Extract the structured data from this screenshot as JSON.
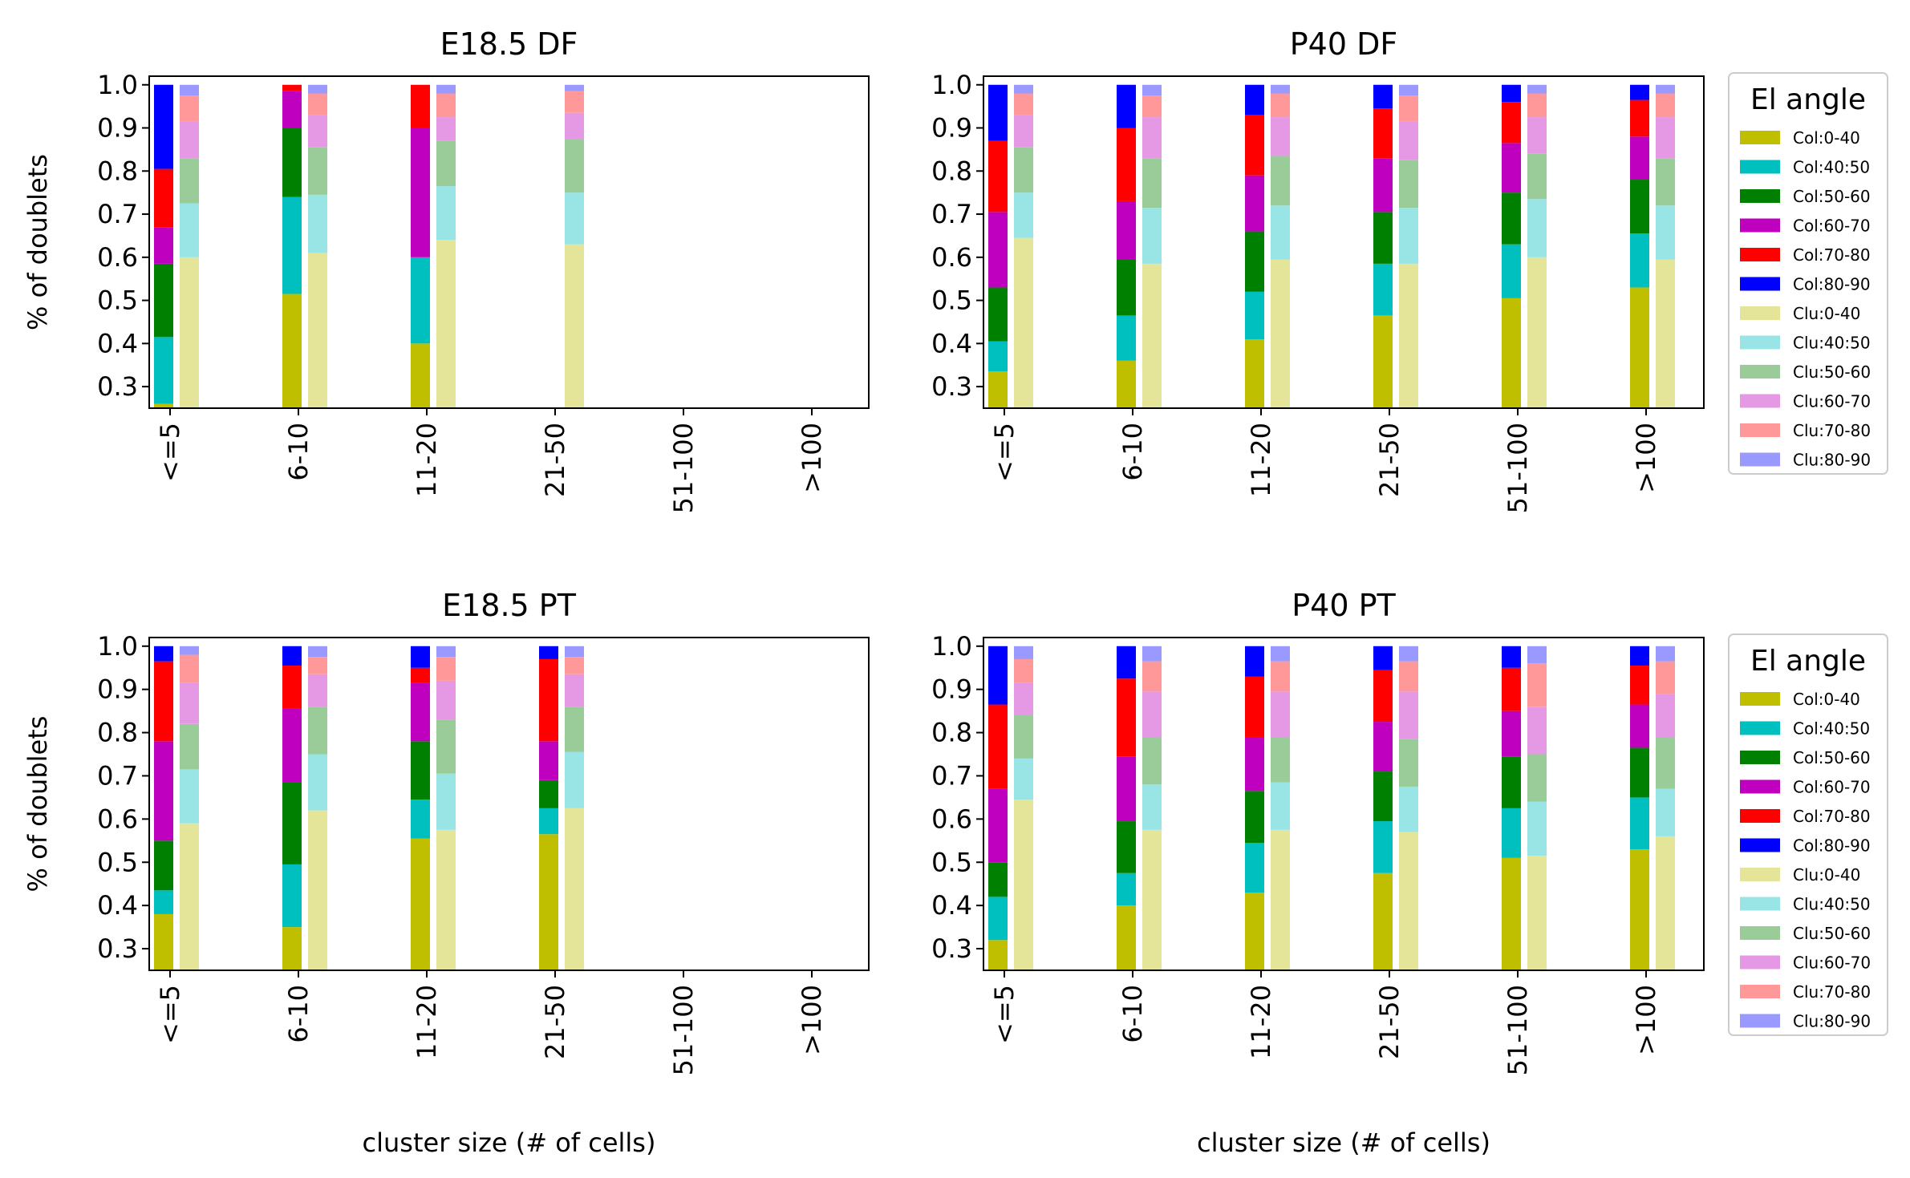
{
  "chart_data": [
    {
      "type": "bar",
      "title": "E18.5 DF",
      "xlabel": "",
      "ylabel": "% of doublets",
      "ylim": [
        0.25,
        1.02
      ],
      "yticks": [
        "0.3",
        "0.4",
        "0.5",
        "0.6",
        "0.7",
        "0.8",
        "0.9",
        "1.0"
      ],
      "categories": [
        "<=5",
        "6-10",
        "11-20",
        "21-50",
        "51-100",
        ">100"
      ],
      "col": [
        [
          0.26,
          0.415,
          0.585,
          0.67,
          0.805,
          1.0
        ],
        [
          0.515,
          0.74,
          0.9,
          0.985,
          1.0,
          1.0
        ],
        [
          0.4,
          0.6,
          0.6,
          0.9,
          1.0,
          1.0
        ],
        null,
        null,
        null
      ],
      "clu": [
        [
          0.6,
          0.725,
          0.83,
          0.915,
          0.975,
          1.0
        ],
        [
          0.61,
          0.745,
          0.855,
          0.93,
          0.98,
          1.0
        ],
        [
          0.64,
          0.765,
          0.87,
          0.925,
          0.98,
          1.0
        ],
        [
          0.63,
          0.75,
          0.875,
          0.935,
          0.985,
          1.0
        ],
        null,
        null
      ]
    },
    {
      "type": "bar",
      "title": "P40 DF",
      "xlabel": "",
      "ylabel": "",
      "ylim": [
        0.25,
        1.02
      ],
      "yticks": [
        "0.3",
        "0.4",
        "0.5",
        "0.6",
        "0.7",
        "0.8",
        "0.9",
        "1.0"
      ],
      "categories": [
        "<=5",
        "6-10",
        "11-20",
        "21-50",
        "51-100",
        ">100"
      ],
      "col": [
        [
          0.335,
          0.405,
          0.53,
          0.705,
          0.87,
          1.0
        ],
        [
          0.36,
          0.465,
          0.595,
          0.73,
          0.9,
          1.0
        ],
        [
          0.41,
          0.52,
          0.66,
          0.79,
          0.93,
          1.0
        ],
        [
          0.465,
          0.585,
          0.705,
          0.83,
          0.945,
          1.0
        ],
        [
          0.505,
          0.63,
          0.75,
          0.865,
          0.96,
          1.0
        ],
        [
          0.53,
          0.655,
          0.78,
          0.88,
          0.965,
          1.0
        ]
      ],
      "clu": [
        [
          0.645,
          0.75,
          0.855,
          0.93,
          0.98,
          1.0
        ],
        [
          0.585,
          0.715,
          0.83,
          0.925,
          0.975,
          1.0
        ],
        [
          0.595,
          0.72,
          0.835,
          0.925,
          0.98,
          1.0
        ],
        [
          0.585,
          0.715,
          0.825,
          0.915,
          0.975,
          1.0
        ],
        [
          0.6,
          0.735,
          0.84,
          0.925,
          0.98,
          1.0
        ],
        [
          0.595,
          0.72,
          0.83,
          0.925,
          0.98,
          1.0
        ]
      ]
    },
    {
      "type": "bar",
      "title": "E18.5 PT",
      "xlabel": "cluster size (# of cells)",
      "ylabel": "% of doublets",
      "ylim": [
        0.25,
        1.02
      ],
      "yticks": [
        "0.3",
        "0.4",
        "0.5",
        "0.6",
        "0.7",
        "0.8",
        "0.9",
        "1.0"
      ],
      "categories": [
        "<=5",
        "6-10",
        "11-20",
        "21-50",
        "51-100",
        ">100"
      ],
      "col": [
        [
          0.38,
          0.435,
          0.55,
          0.78,
          0.965,
          1.0
        ],
        [
          0.35,
          0.495,
          0.685,
          0.855,
          0.955,
          1.0
        ],
        [
          0.555,
          0.645,
          0.78,
          0.915,
          0.95,
          1.0
        ],
        [
          0.565,
          0.625,
          0.69,
          0.78,
          0.97,
          1.0
        ],
        null,
        null
      ],
      "clu": [
        [
          0.59,
          0.715,
          0.82,
          0.915,
          0.98,
          1.0
        ],
        [
          0.62,
          0.75,
          0.86,
          0.935,
          0.975,
          1.0
        ],
        [
          0.575,
          0.705,
          0.83,
          0.92,
          0.975,
          1.0
        ],
        [
          0.625,
          0.755,
          0.86,
          0.935,
          0.975,
          1.0
        ],
        null,
        null
      ]
    },
    {
      "type": "bar",
      "title": "P40 PT",
      "xlabel": "cluster size (# of cells)",
      "ylabel": "",
      "ylim": [
        0.25,
        1.02
      ],
      "yticks": [
        "0.3",
        "0.4",
        "0.5",
        "0.6",
        "0.7",
        "0.8",
        "0.9",
        "1.0"
      ],
      "categories": [
        "<=5",
        "6-10",
        "11-20",
        "21-50",
        "51-100",
        ">100"
      ],
      "col": [
        [
          0.32,
          0.42,
          0.5,
          0.67,
          0.865,
          1.0
        ],
        [
          0.4,
          0.475,
          0.595,
          0.745,
          0.925,
          1.0
        ],
        [
          0.43,
          0.545,
          0.665,
          0.79,
          0.93,
          1.0
        ],
        [
          0.475,
          0.595,
          0.71,
          0.825,
          0.945,
          1.0
        ],
        [
          0.51,
          0.625,
          0.745,
          0.85,
          0.95,
          1.0
        ],
        [
          0.53,
          0.65,
          0.765,
          0.865,
          0.955,
          1.0
        ]
      ],
      "clu": [
        [
          0.645,
          0.74,
          0.84,
          0.915,
          0.97,
          1.0
        ],
        [
          0.575,
          0.68,
          0.79,
          0.895,
          0.965,
          1.0
        ],
        [
          0.575,
          0.685,
          0.79,
          0.895,
          0.965,
          1.0
        ],
        [
          0.57,
          0.675,
          0.785,
          0.895,
          0.965,
          1.0
        ],
        [
          0.515,
          0.64,
          0.75,
          0.86,
          0.96,
          1.0
        ],
        [
          0.56,
          0.67,
          0.79,
          0.89,
          0.965,
          1.0
        ]
      ]
    }
  ],
  "legend": {
    "title": "El angle",
    "placement": "outside-right",
    "entries": [
      {
        "label": "Col:0-40",
        "color": "#bfbf00"
      },
      {
        "label": "Col:40:50",
        "color": "#00bfbf"
      },
      {
        "label": "Col:50-60",
        "color": "#008000"
      },
      {
        "label": "Col:60-70",
        "color": "#bf00bf"
      },
      {
        "label": "Col:70-80",
        "color": "#ff0000"
      },
      {
        "label": "Col:80-90",
        "color": "#0000ff"
      },
      {
        "label": "Clu:0-40",
        "color": "#e5e599"
      },
      {
        "label": "Clu:40:50",
        "color": "#99e5e5"
      },
      {
        "label": "Clu:50-60",
        "color": "#99cc99"
      },
      {
        "label": "Clu:60-70",
        "color": "#e599e5"
      },
      {
        "label": "Clu:70-80",
        "color": "#ff9999"
      },
      {
        "label": "Clu:80-90",
        "color": "#9999ff"
      }
    ]
  }
}
